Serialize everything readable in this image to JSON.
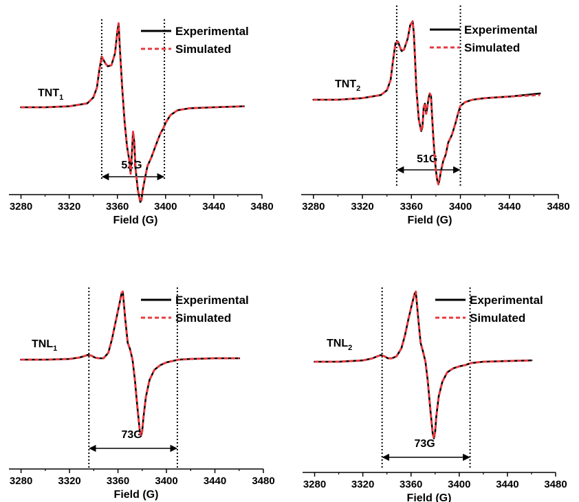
{
  "chart_data": [
    {
      "type": "line",
      "sample_label": "TNT",
      "sample_sub": "1",
      "xlabel": "Field (G)",
      "xlim": [
        3270,
        3480
      ],
      "xticks": [
        3280,
        3320,
        3360,
        3400,
        3440,
        3480
      ],
      "legend": [
        "Experimental",
        "Simulated"
      ],
      "legend_position": "top-right",
      "colors": {
        "experimental": "#000000",
        "simulated": "#e8383d"
      },
      "dotted_lines_x": [
        3347,
        3399
      ],
      "width_label": "52G",
      "series": [
        {
          "name": "Experimental",
          "x": [
            3280,
            3300,
            3320,
            3335,
            3340,
            3343,
            3345,
            3347,
            3350,
            3352,
            3355,
            3358,
            3360,
            3361,
            3362,
            3364,
            3366,
            3368,
            3370,
            3371,
            3372,
            3373,
            3374,
            3375,
            3377,
            3379,
            3380,
            3381,
            3383,
            3385,
            3388,
            3391,
            3394,
            3396,
            3398,
            3400,
            3404,
            3410,
            3420,
            3440,
            3465
          ],
          "y": [
            0.0,
            0.0,
            0.01,
            0.04,
            0.1,
            0.2,
            0.38,
            0.52,
            0.45,
            0.42,
            0.43,
            0.55,
            0.78,
            0.86,
            0.62,
            0.2,
            -0.15,
            -0.4,
            -0.55,
            -0.68,
            -0.48,
            -0.25,
            -0.35,
            -0.62,
            -0.85,
            -0.97,
            -0.95,
            -0.85,
            -0.72,
            -0.6,
            -0.52,
            -0.42,
            -0.32,
            -0.26,
            -0.22,
            -0.16,
            -0.08,
            -0.03,
            -0.01,
            0.0,
            0.01
          ]
        },
        {
          "name": "Simulated",
          "x": [
            3280,
            3300,
            3320,
            3335,
            3340,
            3343,
            3345,
            3347,
            3350,
            3352,
            3355,
            3358,
            3360,
            3361,
            3362,
            3364,
            3366,
            3368,
            3370,
            3371,
            3372,
            3373,
            3374,
            3375,
            3377,
            3379,
            3380,
            3381,
            3383,
            3385,
            3388,
            3391,
            3394,
            3396,
            3398,
            3400,
            3404,
            3410,
            3420,
            3440,
            3465
          ],
          "y": [
            0.0,
            0.0,
            0.01,
            0.04,
            0.1,
            0.2,
            0.38,
            0.52,
            0.45,
            0.42,
            0.43,
            0.55,
            0.78,
            0.86,
            0.62,
            0.2,
            -0.15,
            -0.4,
            -0.55,
            -0.68,
            -0.48,
            -0.25,
            -0.35,
            -0.62,
            -0.85,
            -0.97,
            -0.95,
            -0.85,
            -0.72,
            -0.6,
            -0.52,
            -0.42,
            -0.32,
            -0.26,
            -0.22,
            -0.16,
            -0.08,
            -0.03,
            -0.01,
            0.0,
            0.01
          ]
        }
      ]
    },
    {
      "type": "line",
      "sample_label": "TNT",
      "sample_sub": "2",
      "xlabel": "Field (G)",
      "xlim": [
        3270,
        3480
      ],
      "xticks": [
        3280,
        3320,
        3360,
        3400,
        3440,
        3480
      ],
      "legend": [
        "Experimental",
        "Simulated"
      ],
      "legend_position": "top-right",
      "colors": {
        "experimental": "#000000",
        "simulated": "#e8383d"
      },
      "dotted_lines_x": [
        3348,
        3400
      ],
      "width_label": "51G",
      "series": [
        {
          "name": "Experimental",
          "x": [
            3280,
            3300,
            3320,
            3335,
            3340,
            3343,
            3345,
            3347,
            3349,
            3352,
            3354,
            3357,
            3359,
            3361,
            3362,
            3363,
            3364,
            3366,
            3368,
            3369,
            3370,
            3371,
            3372,
            3373,
            3374,
            3375,
            3376,
            3377,
            3378,
            3379,
            3380,
            3381,
            3382,
            3383,
            3384,
            3386,
            3388,
            3390,
            3393,
            3396,
            3398,
            3400,
            3404,
            3410,
            3420,
            3440,
            3465
          ],
          "y": [
            0.0,
            0.0,
            0.02,
            0.06,
            0.12,
            0.25,
            0.5,
            0.72,
            0.74,
            0.62,
            0.64,
            0.78,
            0.95,
            1.0,
            0.85,
            0.52,
            0.15,
            -0.25,
            -0.4,
            -0.35,
            -0.1,
            -0.05,
            -0.18,
            -0.1,
            0.02,
            0.08,
            0.05,
            -0.25,
            -0.5,
            -0.72,
            -0.9,
            -1.02,
            -1.08,
            -1.02,
            -0.92,
            -0.78,
            -0.7,
            -0.55,
            -0.45,
            -0.3,
            -0.18,
            -0.08,
            -0.03,
            0.0,
            0.02,
            0.04,
            0.08
          ]
        },
        {
          "name": "Simulated",
          "x": [
            3280,
            3300,
            3320,
            3335,
            3340,
            3343,
            3345,
            3347,
            3349,
            3352,
            3354,
            3357,
            3359,
            3361,
            3362,
            3363,
            3364,
            3366,
            3368,
            3369,
            3370,
            3371,
            3372,
            3373,
            3374,
            3375,
            3376,
            3377,
            3378,
            3379,
            3380,
            3381,
            3382,
            3383,
            3384,
            3386,
            3388,
            3390,
            3393,
            3396,
            3398,
            3400,
            3404,
            3410,
            3420,
            3440,
            3465
          ],
          "y": [
            0.0,
            0.0,
            0.02,
            0.06,
            0.12,
            0.25,
            0.5,
            0.72,
            0.74,
            0.62,
            0.64,
            0.78,
            0.95,
            1.0,
            0.85,
            0.52,
            0.15,
            -0.25,
            -0.4,
            -0.35,
            -0.1,
            -0.05,
            -0.18,
            -0.1,
            0.02,
            0.08,
            0.05,
            -0.25,
            -0.5,
            -0.72,
            -0.9,
            -1.02,
            -1.08,
            -1.02,
            -0.92,
            -0.78,
            -0.7,
            -0.55,
            -0.45,
            -0.3,
            -0.18,
            -0.08,
            -0.03,
            0.0,
            0.02,
            0.04,
            0.06
          ]
        }
      ]
    },
    {
      "type": "line",
      "sample_label": "TNL",
      "sample_sub": "1",
      "xlabel": "Field (G)",
      "xlim": [
        3270,
        3480
      ],
      "xticks": [
        3280,
        3320,
        3360,
        3400,
        3440,
        3480
      ],
      "legend": [
        "Experimental",
        "Simulated"
      ],
      "legend_position": "top-right",
      "colors": {
        "experimental": "#000000",
        "simulated": "#e8383d"
      },
      "dotted_lines_x": [
        3336,
        3409
      ],
      "width_label": "73G",
      "series": [
        {
          "name": "Experimental",
          "x": [
            3280,
            3300,
            3320,
            3328,
            3332,
            3335,
            3338,
            3341,
            3344,
            3348,
            3352,
            3355,
            3358,
            3361,
            3363,
            3364,
            3366,
            3368,
            3370,
            3372,
            3374,
            3376,
            3378,
            3379,
            3380,
            3381,
            3383,
            3386,
            3390,
            3395,
            3400,
            3405,
            3410,
            3420,
            3440,
            3460
          ],
          "y": [
            0.0,
            0.0,
            0.01,
            0.03,
            0.05,
            0.07,
            0.06,
            0.03,
            0.02,
            0.02,
            0.1,
            0.3,
            0.55,
            0.8,
            0.98,
            1.0,
            0.6,
            0.25,
            0.15,
            0.0,
            -0.3,
            -0.7,
            -1.05,
            -1.12,
            -1.05,
            -0.85,
            -0.55,
            -0.3,
            -0.15,
            -0.08,
            -0.04,
            -0.02,
            0.0,
            0.01,
            0.02,
            0.02
          ]
        },
        {
          "name": "Simulated",
          "x": [
            3280,
            3300,
            3320,
            3328,
            3332,
            3335,
            3338,
            3341,
            3344,
            3348,
            3352,
            3355,
            3358,
            3361,
            3363,
            3364,
            3366,
            3368,
            3370,
            3372,
            3374,
            3376,
            3378,
            3379,
            3380,
            3381,
            3383,
            3386,
            3390,
            3395,
            3400,
            3405,
            3410,
            3420,
            3440,
            3460
          ],
          "y": [
            0.0,
            0.0,
            0.01,
            0.03,
            0.05,
            0.07,
            0.06,
            0.03,
            0.02,
            0.02,
            0.1,
            0.3,
            0.55,
            0.8,
            0.98,
            1.0,
            0.6,
            0.25,
            0.15,
            0.0,
            -0.3,
            -0.7,
            -1.05,
            -1.12,
            -1.05,
            -0.85,
            -0.55,
            -0.3,
            -0.15,
            -0.08,
            -0.04,
            -0.02,
            0.0,
            0.01,
            0.02,
            0.02
          ]
        }
      ]
    },
    {
      "type": "line",
      "sample_label": "TNL",
      "sample_sub": "2",
      "xlabel": "Field (G)",
      "xlim": [
        3270,
        3480
      ],
      "xticks": [
        3280,
        3320,
        3360,
        3400,
        3440,
        3480
      ],
      "legend": [
        "Experimental",
        "Simulated"
      ],
      "legend_position": "top-right",
      "colors": {
        "experimental": "#000000",
        "simulated": "#e8383d"
      },
      "dotted_lines_x": [
        3336,
        3409
      ],
      "width_label": "73G",
      "series": [
        {
          "name": "Experimental",
          "x": [
            3280,
            3300,
            3320,
            3328,
            3332,
            3335,
            3338,
            3341,
            3344,
            3348,
            3352,
            3355,
            3358,
            3361,
            3363,
            3364,
            3366,
            3368,
            3370,
            3372,
            3374,
            3376,
            3378,
            3379,
            3380,
            3381,
            3383,
            3386,
            3390,
            3395,
            3400,
            3405,
            3410,
            3420,
            3440,
            3460
          ],
          "y": [
            0.0,
            0.0,
            0.02,
            0.05,
            0.08,
            0.1,
            0.08,
            0.05,
            0.05,
            0.08,
            0.2,
            0.4,
            0.65,
            0.88,
            1.02,
            1.05,
            0.65,
            0.28,
            0.15,
            0.0,
            -0.3,
            -0.72,
            -1.08,
            -1.15,
            -1.05,
            -0.82,
            -0.52,
            -0.3,
            -0.16,
            -0.1,
            -0.07,
            -0.05,
            -0.02,
            0.0,
            0.01,
            0.02
          ]
        },
        {
          "name": "Simulated",
          "x": [
            3280,
            3300,
            3320,
            3328,
            3332,
            3335,
            3338,
            3341,
            3344,
            3348,
            3352,
            3355,
            3358,
            3361,
            3363,
            3364,
            3366,
            3368,
            3370,
            3372,
            3374,
            3376,
            3378,
            3379,
            3380,
            3381,
            3383,
            3386,
            3390,
            3395,
            3400,
            3405,
            3410,
            3420,
            3440,
            3460
          ],
          "y": [
            0.0,
            0.0,
            0.02,
            0.05,
            0.08,
            0.1,
            0.08,
            0.05,
            0.05,
            0.08,
            0.2,
            0.4,
            0.65,
            0.88,
            1.02,
            1.05,
            0.65,
            0.28,
            0.15,
            0.0,
            -0.3,
            -0.72,
            -1.08,
            -1.15,
            -1.05,
            -0.82,
            -0.52,
            -0.3,
            -0.16,
            -0.1,
            -0.07,
            -0.05,
            -0.02,
            0.0,
            0.01,
            0.02
          ]
        }
      ]
    }
  ]
}
